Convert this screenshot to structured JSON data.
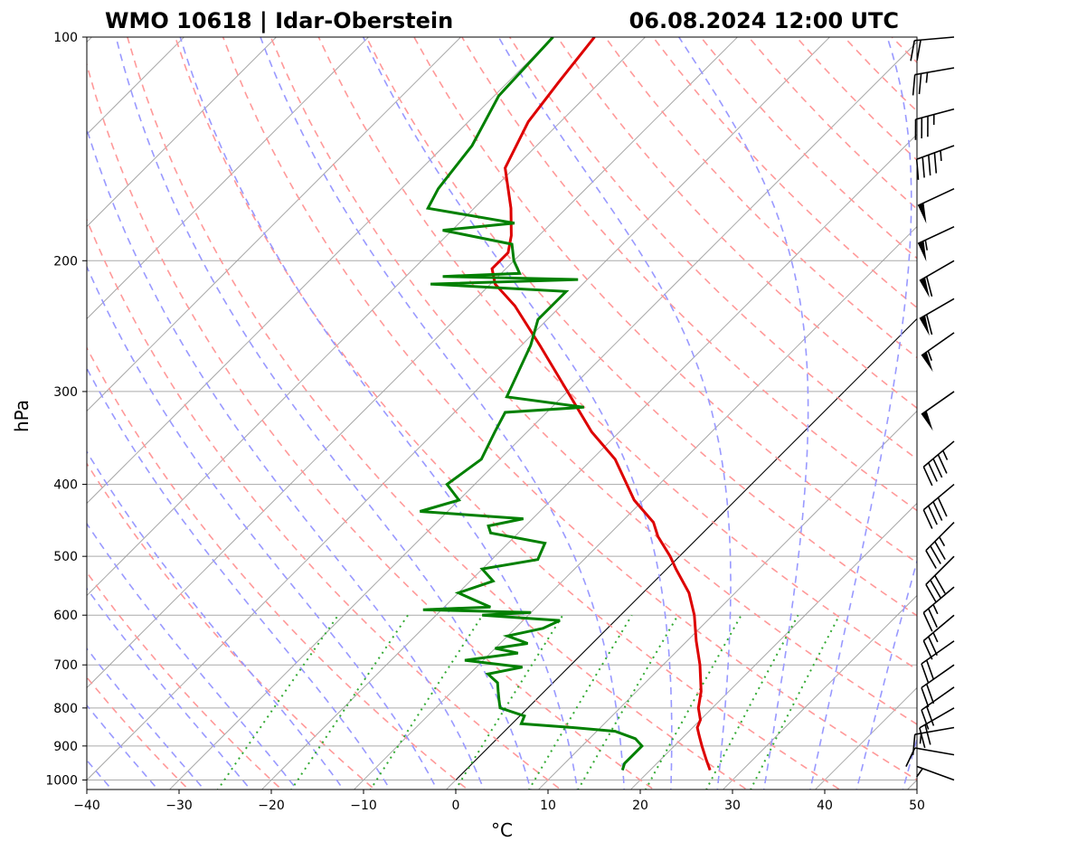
{
  "chart_data": {
    "type": "line",
    "title_left": "WMO 10618 | Idar-Oberstein",
    "title_right": "06.08.2024 12:00 UTC",
    "xlabel": "°C",
    "ylabel": "hPa",
    "xlim": [
      -40,
      50
    ],
    "ylim": [
      1030,
      100
    ],
    "y_scale": "log",
    "x_ticks": [
      -40,
      -30,
      -20,
      -10,
      0,
      10,
      20,
      30,
      40,
      50
    ],
    "x_tick_labels": [
      "−40",
      "−30",
      "−20",
      "−10",
      "0",
      "10",
      "20",
      "30",
      "40",
      "50"
    ],
    "y_ticks": [
      1000,
      900,
      800,
      700,
      600,
      500,
      400,
      300,
      200,
      100
    ],
    "y_tick_labels": [
      "1000",
      "900",
      "800",
      "700",
      "600",
      "500",
      "400",
      "300",
      "200",
      "100"
    ],
    "grid": true,
    "skew_degrees": 45,
    "series": [
      {
        "color": "#dd0000",
        "pressure": [
          970,
          940,
          900,
          870,
          850,
          830,
          800,
          760,
          700,
          650,
          600,
          560,
          520,
          500,
          470,
          450,
          420,
          400,
          370,
          340,
          300,
          260,
          230,
          215,
          205,
          195,
          185,
          170,
          150,
          130,
          115,
          100
        ],
        "values": [
          26.5,
          25,
          23,
          21.5,
          20.5,
          20,
          18.5,
          17,
          14,
          11,
          8,
          5,
          1,
          -1,
          -4.5,
          -6.5,
          -11,
          -13.5,
          -17.5,
          -23,
          -30,
          -38,
          -45,
          -49.5,
          -51.5,
          -51.5,
          -53,
          -56,
          -61,
          -63.5,
          -64.5,
          -65.5
        ]
      },
      {
        "color": "#008000",
        "pressure": [
          970,
          950,
          900,
          880,
          860,
          850,
          840,
          820,
          800,
          780,
          760,
          740,
          720,
          705,
          690,
          675,
          665,
          655,
          640,
          625,
          610,
          600,
          595,
          590,
          585,
          575,
          560,
          540,
          520,
          505,
          480,
          465,
          455,
          445,
          435,
          420,
          400,
          370,
          340,
          320,
          315,
          305,
          260,
          240,
          220,
          215,
          212,
          210,
          208,
          200,
          190,
          182,
          178,
          170,
          160,
          140,
          120,
          100
        ],
        "values": [
          17,
          16.5,
          16.5,
          15,
          12,
          7,
          1,
          0.5,
          -3,
          -4,
          -5,
          -6,
          -8,
          -5,
          -12,
          -7,
          -10,
          -7,
          -10,
          -7,
          -6,
          -15,
          -10,
          -22,
          -15,
          -17,
          -20,
          -17.5,
          -20,
          -15,
          -16,
          -23,
          -24,
          -21,
          -33,
          -30,
          -33,
          -32,
          -33.5,
          -34.5,
          -26.5,
          -36,
          -39,
          -41,
          -41,
          -56.5,
          -41,
          -56,
          -48,
          -50,
          -52,
          -61,
          -54,
          -65,
          -66,
          -67,
          -69.5,
          -70
        ]
      }
    ],
    "wind_barbs": [
      {
        "pressure": 1000,
        "dir": 290,
        "speed": 5
      },
      {
        "pressure": 925,
        "dir": 280,
        "speed": 10
      },
      {
        "pressure": 850,
        "dir": 260,
        "speed": 15
      },
      {
        "pressure": 800,
        "dir": 240,
        "speed": 20
      },
      {
        "pressure": 750,
        "dir": 235,
        "speed": 20
      },
      {
        "pressure": 700,
        "dir": 235,
        "speed": 20
      },
      {
        "pressure": 650,
        "dir": 235,
        "speed": 20
      },
      {
        "pressure": 600,
        "dir": 230,
        "speed": 25
      },
      {
        "pressure": 550,
        "dir": 230,
        "speed": 25
      },
      {
        "pressure": 500,
        "dir": 225,
        "speed": 30
      },
      {
        "pressure": 450,
        "dir": 225,
        "speed": 35
      },
      {
        "pressure": 400,
        "dir": 230,
        "speed": 40
      },
      {
        "pressure": 350,
        "dir": 230,
        "speed": 45
      },
      {
        "pressure": 300,
        "dir": 235,
        "speed": 50
      },
      {
        "pressure": 250,
        "dir": 235,
        "speed": 55
      },
      {
        "pressure": 225,
        "dir": 240,
        "speed": 60
      },
      {
        "pressure": 200,
        "dir": 240,
        "speed": 60
      },
      {
        "pressure": 180,
        "dir": 245,
        "speed": 55
      },
      {
        "pressure": 160,
        "dir": 245,
        "speed": 50
      },
      {
        "pressure": 140,
        "dir": 250,
        "speed": 45
      },
      {
        "pressure": 125,
        "dir": 255,
        "speed": 35
      },
      {
        "pressure": 110,
        "dir": 260,
        "speed": 25
      },
      {
        "pressure": 100,
        "dir": 265,
        "speed": 20
      }
    ],
    "colors": {
      "dry_adiabats": "#ff9999",
      "moist_adiabats": "#9999ff",
      "mixing_ratio": "#33aa33",
      "isotherms": "#999999",
      "isobars": "#aaaaaa",
      "zero_isotherm": "#000000"
    }
  }
}
